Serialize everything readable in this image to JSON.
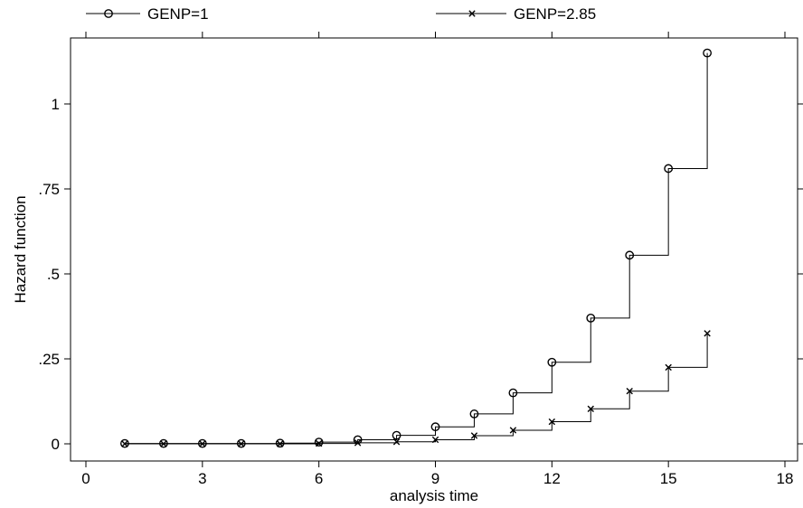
{
  "chart_data": {
    "type": "line",
    "step": true,
    "xlabel": "analysis time",
    "ylabel": "Hazard function",
    "xlim": [
      0,
      18
    ],
    "ylim": [
      0,
      1.15
    ],
    "xticks": [
      0,
      3,
      6,
      9,
      12,
      15,
      18
    ],
    "xtick_labels": [
      "0",
      "3",
      "6",
      "9",
      "12",
      "15",
      "18"
    ],
    "yticks": [
      0,
      0.25,
      0.5,
      0.75,
      1
    ],
    "ytick_labels": [
      "0",
      ".25",
      ".5",
      ".75",
      "1"
    ],
    "grid": false,
    "legend_position": "top",
    "series": [
      {
        "name": "GENP=1",
        "marker": "circle",
        "x": [
          1,
          2,
          3,
          4,
          5,
          6,
          7,
          8,
          9,
          10,
          11,
          12,
          13,
          14,
          15,
          16
        ],
        "y": [
          0.001,
          0.001,
          0.001,
          0.001,
          0.002,
          0.005,
          0.012,
          0.025,
          0.05,
          0.088,
          0.15,
          0.24,
          0.37,
          0.555,
          0.81,
          1.15
        ]
      },
      {
        "name": "GENP=2.85",
        "marker": "x",
        "x": [
          1,
          2,
          3,
          4,
          5,
          6,
          7,
          8,
          9,
          10,
          11,
          12,
          13,
          14,
          15,
          16
        ],
        "y": [
          0.0,
          0.0,
          0.0,
          0.0,
          0.0,
          0.001,
          0.003,
          0.006,
          0.012,
          0.024,
          0.04,
          0.065,
          0.103,
          0.155,
          0.225,
          0.325
        ]
      }
    ]
  }
}
